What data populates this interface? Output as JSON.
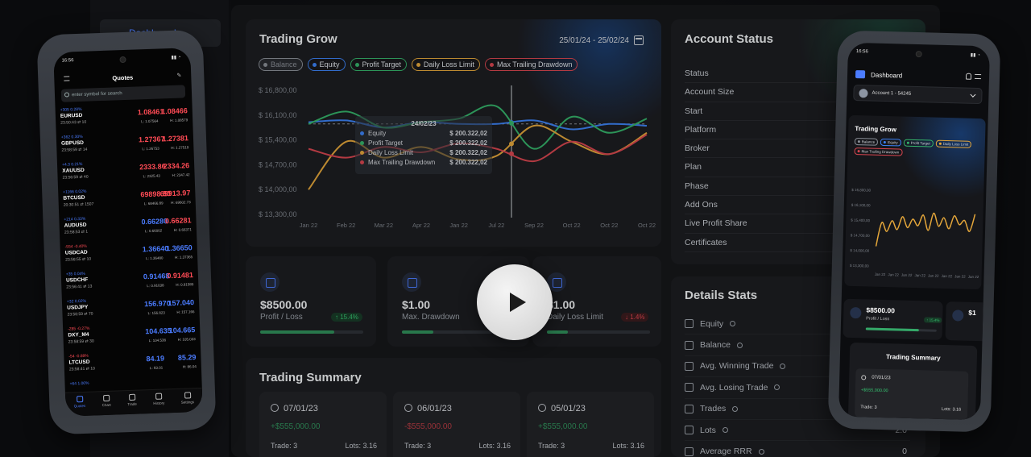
{
  "colors": {
    "equity": "#3b82f6",
    "profit_target": "#34b26a",
    "daily_loss_limit": "#e4a63a",
    "max_trailing_drawdown": "#d8454f",
    "balance": "#8a8f97",
    "accent": "#4b7cff",
    "positive": "#35c06f",
    "negative": "#e0454f"
  },
  "desktop": {
    "sidebar": {
      "nav_label": "Dashboard"
    },
    "trading_grow": {
      "title": "Trading Grow",
      "date_range": "25/01/24 - 25/02/24",
      "legend": [
        {
          "label": "Balance",
          "color": "#8a8f97"
        },
        {
          "label": "Equity",
          "color": "#3b82f6"
        },
        {
          "label": "Profit Target",
          "color": "#34b26a"
        },
        {
          "label": "Daily Loss Limit",
          "color": "#e4a63a"
        },
        {
          "label": "Max Trailing Drawdown",
          "color": "#d8454f"
        }
      ],
      "tooltip": {
        "date": "24/02/23",
        "rows": [
          {
            "name": "Equity",
            "value": "$ 200.322,02",
            "color": "#3b82f6"
          },
          {
            "name": "Profit Target",
            "value": "$ 200.322,02",
            "color": "#34b26a"
          },
          {
            "name": "Daily Loss Limit",
            "value": "$ 200.322,02",
            "color": "#e4a63a"
          },
          {
            "name": "Max Trailing Drawdown",
            "value": "$ 200.322,02",
            "color": "#d8454f"
          }
        ]
      }
    },
    "stats": [
      {
        "value": "$8500.00",
        "label": "Profit / Loss",
        "badge": "↑ 15.4%",
        "badge_type": "positive",
        "progress": 0.72
      },
      {
        "value": "$1.00",
        "label": "Max. Drawdown",
        "badge": "",
        "badge_type": "none",
        "progress": 0.3
      },
      {
        "value": "$1.00",
        "label": "Daily Loss Limit",
        "badge": "↓ 1.4%",
        "badge_type": "negative",
        "progress": 0.2
      }
    ],
    "trading_summary": {
      "title": "Trading Summary",
      "items": [
        {
          "date": "07/01/23",
          "amount": "+$555,000.00",
          "amount_type": "positive",
          "trade": "Trade: 3",
          "lots": "Lots: 3.16"
        },
        {
          "date": "06/01/23",
          "amount": "-$555,000.00",
          "amount_type": "negative",
          "trade": "Trade: 3",
          "lots": "Lots: 3.16"
        },
        {
          "date": "05/01/23",
          "amount": "+$555,000.00",
          "amount_type": "positive",
          "trade": "Trade: 3",
          "lots": "Lots: 3.16"
        }
      ]
    },
    "account_status": {
      "title": "Account Status",
      "rows": [
        "Status",
        "Account Size",
        "Start",
        "Platform",
        "Broker",
        "Plan",
        "Phase",
        "Add Ons",
        "Live Profit Share",
        "Certificates"
      ]
    },
    "details_stats": {
      "title": "Details Stats",
      "rows": [
        {
          "label": "Equity",
          "value": ""
        },
        {
          "label": "Balance",
          "value": ""
        },
        {
          "label": "Avg. Winning Trade",
          "value": ""
        },
        {
          "label": "Avg. Losing Trade",
          "value": ""
        },
        {
          "label": "Trades",
          "value": ""
        },
        {
          "label": "Lots",
          "value": "2.0"
        },
        {
          "label": "Average RRR",
          "value": "0"
        }
      ]
    }
  },
  "chart_data": {
    "type": "line",
    "title": "Trading Grow",
    "categories": [
      "Jan 22",
      "Feb 22",
      "Mar 22",
      "Apr 22",
      "Jan 22",
      "Jul 22",
      "Sep 22",
      "Oct 22",
      "Oct 22",
      "Oct 22"
    ],
    "yticks": [
      "$ 16,800,00",
      "$ 16,100,00",
      "$ 15,400,00",
      "$ 14,700,00",
      "$ 14,000,00",
      "$ 13,300,00"
    ],
    "ylim": [
      13300,
      16800
    ],
    "highlight_index": 5.4,
    "series": [
      {
        "name": "Balance",
        "color": "#8a8f97",
        "dashed": true,
        "values": [
          15850,
          15850,
          15850,
          15850,
          15850,
          15850,
          15850,
          15850,
          15850,
          15850
        ]
      },
      {
        "name": "Equity",
        "color": "#3b82f6",
        "values": [
          15900,
          15950,
          15750,
          15900,
          15850,
          15850,
          15950,
          15700,
          15850,
          15800
        ]
      },
      {
        "name": "Profit Target",
        "color": "#34b26a",
        "values": [
          15850,
          16200,
          15750,
          15900,
          16000,
          16350,
          15150,
          16050,
          15600,
          16000
        ]
      },
      {
        "name": "Daily Loss Limit",
        "color": "#e4a63a",
        "values": [
          14000,
          15350,
          14900,
          15200,
          14850,
          14950,
          15800,
          15350,
          15000,
          15600
        ]
      },
      {
        "name": "Max Trailing Drawdown",
        "color": "#d8454f",
        "values": [
          15150,
          14900,
          15200,
          15050,
          15300,
          15150,
          14800,
          15350,
          15000,
          15550
        ]
      }
    ]
  },
  "phone_left": {
    "status_time": "16:56",
    "status_icons": "▮▮ ◔",
    "title": "Quotes",
    "search_placeholder": "enter symbol for search",
    "quotes": [
      {
        "change": "+305 0.28%",
        "change_type": "positive",
        "symbol": "EURUSD",
        "time": "23:50:43 ⇄ 10",
        "bid": "1.08461",
        "ask": "1.08466",
        "low": "L: 1.07564",
        "high": "H: 1.08579",
        "bid_color": "negative",
        "ask_color": "negative"
      },
      {
        "change": "+362 0.30%",
        "change_type": "positive",
        "symbol": "GBPUSD",
        "time": "23:58:59 ⇄ 14",
        "bid": "1.27367",
        "ask": "1.27381",
        "low": "L: 1.26753",
        "high": "H: 1.27519",
        "bid_color": "negative",
        "ask_color": "negative"
      },
      {
        "change": "+4.3 0.21%",
        "change_type": "positive",
        "symbol": "XAUUSD",
        "time": "23:56:59 ⇄ 40",
        "bid": "2333.86",
        "ask": "2334.26",
        "low": "L: 2325.43",
        "high": "H: 2347.42",
        "bid_color": "negative",
        "ask_color": "negative"
      },
      {
        "change": "+1166 0.02%",
        "change_type": "positive",
        "symbol": "BTCUSD",
        "time": "20:30:51 ⇄ 1507",
        "bid": "69898.90",
        "ask": "69913.97",
        "low": "L: 68466.89",
        "high": "H: 69602.73",
        "bid_color": "negative",
        "ask_color": "negative"
      },
      {
        "change": "+214 0.33%",
        "change_type": "positive",
        "symbol": "AUDUSD",
        "time": "23:58:53 ⇄ 1",
        "bid": "0.66280",
        "ask": "0.66281",
        "low": "L: 0.66002",
        "high": "H: 0.66371",
        "bid_color": "accent",
        "ask_color": "negative"
      },
      {
        "change": "-554 -0.40%",
        "change_type": "negative",
        "symbol": "USDCAD",
        "time": "23:58:55 ⇄ 10",
        "bid": "1.36640",
        "ask": "1.36650",
        "low": "L: 1.36480",
        "high": "H: 1.37365",
        "bid_color": "accent",
        "ask_color": "accent"
      },
      {
        "change": "+35 0.04%",
        "change_type": "positive",
        "symbol": "USDCHF",
        "time": "23:56:41 ⇄ 13",
        "bid": "0.91468",
        "ask": "0.91481",
        "low": "L: 0.91038",
        "high": "H: 0.91580",
        "bid_color": "accent",
        "ask_color": "negative"
      },
      {
        "change": "+32 0.02%",
        "change_type": "positive",
        "symbol": "USDJPY",
        "time": "23:58:59 ⇄ 70",
        "bid": "156.970",
        "ask": "157.040",
        "low": "L: 156.823",
        "high": "H: 157.166",
        "bid_color": "accent",
        "ask_color": "accent"
      },
      {
        "change": "-285 -0.27%",
        "change_type": "negative",
        "symbol": "DXY_M4",
        "time": "23:58:59 ⇄ 30",
        "bid": "104.635",
        "ask": "104.665",
        "low": "L: 104.538",
        "high": "H: 105.033",
        "bid_color": "accent",
        "ask_color": "accent"
      },
      {
        "change": "-54 -0.89%",
        "change_type": "negative",
        "symbol": "LTCUSD",
        "time": "23:58:41 ⇄ 10",
        "bid": "84.19",
        "ask": "85.29",
        "low": "L: 83.01",
        "high": "H: 86.04",
        "bid_color": "accent",
        "ask_color": "accent"
      },
      {
        "change": "+64 1.00%",
        "change_type": "positive",
        "symbol": "",
        "time": "",
        "bid": "",
        "ask": "",
        "low": "",
        "high": "",
        "bid_color": "accent",
        "ask_color": "accent"
      }
    ],
    "tabs": [
      "Quotes",
      "Chart",
      "Trade",
      "History",
      "Settings"
    ]
  },
  "phone_right": {
    "status_time": "16:56",
    "status_icons": "▮▮ ◔",
    "header_title": "Dashboard",
    "account_selector": "Account 1 - 54245",
    "chart_title": "Trading Grow",
    "legend": [
      {
        "label": "Balance",
        "color": "#8a8f97"
      },
      {
        "label": "Equity",
        "color": "#3b82f6"
      },
      {
        "label": "Profit Target",
        "color": "#34b26a"
      },
      {
        "label": "Daily Loss Limit",
        "color": "#e4a63a"
      },
      {
        "label": "Max Trailing Drawdown",
        "color": "#d8454f"
      }
    ],
    "mini_chart": {
      "yticks": [
        "$ 16,800,00",
        "$ 16,100,00",
        "$ 15,400,00",
        "$ 14,700,00",
        "$ 14,000,00",
        "$ 13,300,00"
      ],
      "xticks": [
        "Jan 22",
        "Jan 22",
        "Jan 22",
        "Jan 22",
        "Jan 22",
        "Jan 22",
        "Jan 22",
        "Jan 22"
      ],
      "ylim": [
        13300,
        16800
      ],
      "values": [
        14200,
        15300,
        14900,
        15400,
        15000,
        15600,
        15100,
        15500,
        15200,
        15700,
        15000,
        15800,
        15200,
        15600,
        15100,
        15700,
        15300,
        15500,
        15000,
        15800
      ]
    },
    "stat": {
      "value": "$8500.00",
      "label": "Profit / Loss",
      "badge": "↑ 15.4%",
      "progress": 0.75
    },
    "stat2_value": "$1",
    "summary": {
      "title": "Trading Summary",
      "date": "07/01/23",
      "amount": "+$555,000.00",
      "trade": "Trade: 3",
      "lots": "Lots: 3.16"
    }
  }
}
